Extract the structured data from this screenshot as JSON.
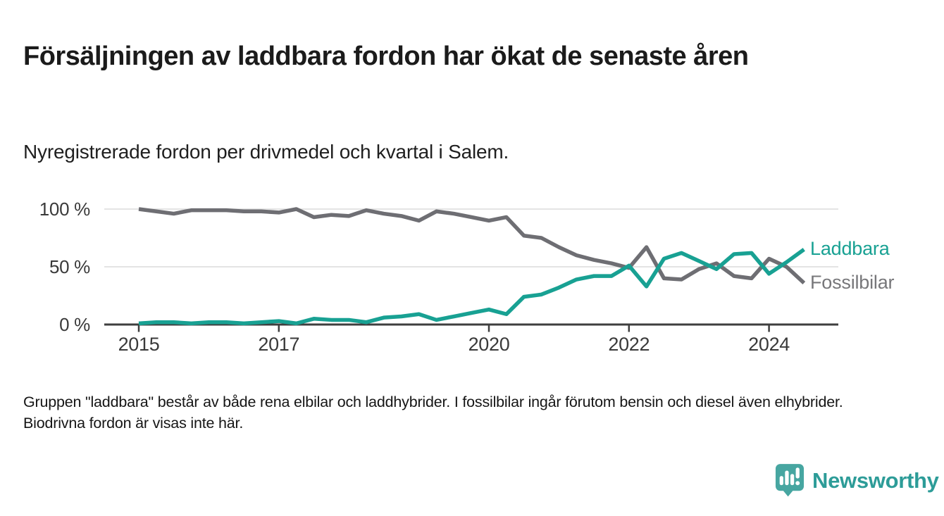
{
  "header": {
    "title": "Försäljningen av laddbara fordon har ökat de senaste åren",
    "subtitle": "Nyregistrerade fordon per drivmedel och kvartal i Salem."
  },
  "chart_data": {
    "type": "line",
    "title": "Försäljningen av laddbara fordon har ökat de senaste åren",
    "subtitle": "Nyregistrerade fordon per drivmedel och kvartal i Salem.",
    "unit": "%",
    "ylim": [
      0,
      100
    ],
    "grid": "horizontal",
    "legend_position": "line-end-labels-right",
    "y_ticks": [
      {
        "value": 100,
        "label": "100 %"
      },
      {
        "value": 50,
        "label": "50 %"
      },
      {
        "value": 0,
        "label": "0 %"
      }
    ],
    "x_ticks": [
      {
        "index": 0,
        "label": "2015"
      },
      {
        "index": 8,
        "label": "2017"
      },
      {
        "index": 20,
        "label": "2020"
      },
      {
        "index": 28,
        "label": "2022"
      },
      {
        "index": 36,
        "label": "2024"
      }
    ],
    "x": [
      "2015 Q1",
      "2015 Q2",
      "2015 Q3",
      "2015 Q4",
      "2016 Q1",
      "2016 Q2",
      "2016 Q3",
      "2016 Q4",
      "2017 Q1",
      "2017 Q2",
      "2017 Q3",
      "2017 Q4",
      "2018 Q1",
      "2018 Q2",
      "2018 Q3",
      "2018 Q4",
      "2019 Q1",
      "2019 Q2",
      "2019 Q3",
      "2019 Q4",
      "2020 Q1",
      "2020 Q2",
      "2020 Q3",
      "2020 Q4",
      "2021 Q1",
      "2021 Q2",
      "2021 Q3",
      "2021 Q4",
      "2022 Q1",
      "2022 Q2",
      "2022 Q3",
      "2022 Q4",
      "2023 Q1",
      "2023 Q2",
      "2023 Q3",
      "2023 Q4",
      "2024 Q1",
      "2024 Q2",
      "2024 Q3"
    ],
    "series": [
      {
        "name": "Laddbara",
        "color": "#18a193",
        "label_color": "#18a193",
        "values": [
          1,
          2,
          2,
          1,
          2,
          2,
          1,
          2,
          3,
          1,
          5,
          4,
          4,
          2,
          6,
          7,
          9,
          4,
          7,
          10,
          13,
          9,
          24,
          26,
          32,
          39,
          42,
          42,
          51,
          33,
          57,
          62,
          55,
          48,
          61,
          62,
          44,
          54,
          65
        ]
      },
      {
        "name": "Fossilbilar",
        "color": "#6e6e73",
        "label_color": "#77777a",
        "values": [
          100,
          98,
          96,
          99,
          99,
          99,
          98,
          98,
          97,
          100,
          93,
          95,
          94,
          99,
          96,
          94,
          90,
          98,
          96,
          93,
          90,
          93,
          77,
          75,
          67,
          60,
          56,
          53,
          49,
          67,
          40,
          39,
          48,
          53,
          42,
          40,
          57,
          50,
          36
        ]
      }
    ]
  },
  "footnote": "Gruppen \"laddbara\" består av både rena elbilar och laddhybrider. I fossilbilar ingår förutom bensin och diesel även elhybrider. Biodrivna fordon är visas inte här.",
  "branding": {
    "name": "Newsworthy",
    "logo_icon": "bar-chart-speech-bubble-icon",
    "brand_color": "#2d9c98",
    "icon_color": "#47a6a1"
  }
}
